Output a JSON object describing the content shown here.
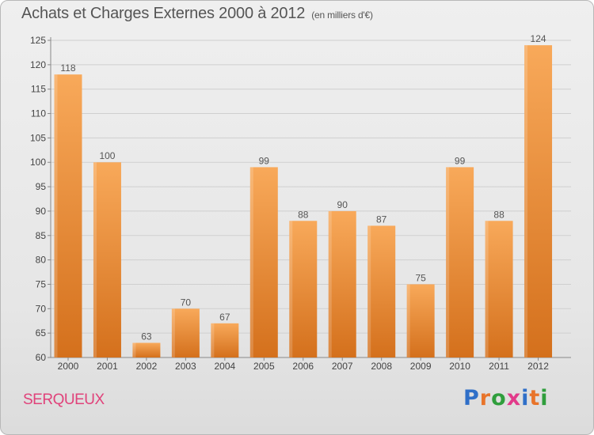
{
  "header": {
    "title": "Achats et Charges Externes 2000 à 2012",
    "unit": "(en milliers d'€)"
  },
  "footer": {
    "commune": "SERQUEUX",
    "logo": {
      "letters": [
        "P",
        "r",
        "o",
        "x",
        "i",
        "t",
        "i"
      ],
      "colors": [
        "#2f6fc8",
        "#e8742a",
        "#2f9e3c",
        "#e23a8a",
        "#2f6fc8",
        "#e8742a",
        "#2f9e3c"
      ]
    }
  },
  "colors": {
    "bar_light": "#f8a95a",
    "bar_dark": "#d4701c",
    "grid": "#cfcfcf"
  },
  "chart_data": {
    "type": "bar",
    "title": "Achats et Charges Externes 2000 à 2012",
    "subtitle": "(en milliers d'€)",
    "xlabel": "",
    "ylabel": "",
    "categories": [
      "2000",
      "2001",
      "2002",
      "2003",
      "2004",
      "2005",
      "2006",
      "2007",
      "2008",
      "2009",
      "2010",
      "2011",
      "2012"
    ],
    "values": [
      118,
      100,
      63,
      70,
      67,
      99,
      88,
      90,
      87,
      75,
      99,
      88,
      124
    ],
    "ylim": [
      60,
      125
    ],
    "yticks": [
      60,
      65,
      70,
      75,
      80,
      85,
      90,
      95,
      100,
      105,
      110,
      115,
      120,
      125
    ],
    "grid": true,
    "legend": "none"
  }
}
